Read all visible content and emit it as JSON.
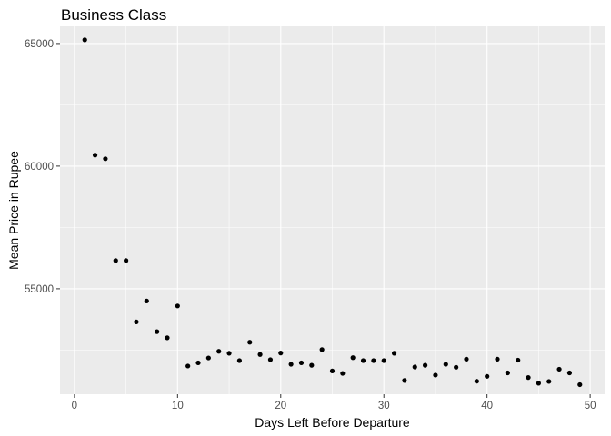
{
  "chart_data": {
    "type": "scatter",
    "title": "Business Class",
    "xlabel": "Days Left Before Departure",
    "ylabel": "Mean Price in Rupee",
    "xlim": [
      -1.4,
      51.4
    ],
    "ylim": [
      50700,
      65700
    ],
    "x_ticks": [
      0,
      10,
      20,
      30,
      40,
      50
    ],
    "y_ticks": [
      55000,
      60000,
      65000
    ],
    "grid": true,
    "legend": "none",
    "colors": {
      "panel": "#ebebeb",
      "grid_major": "#ffffff",
      "point": "#000000",
      "tick_text": "#4d4d4d",
      "tick_mark": "#333333"
    },
    "x": [
      1,
      2,
      3,
      4,
      5,
      6,
      7,
      8,
      9,
      10,
      11,
      12,
      13,
      14,
      15,
      16,
      17,
      18,
      19,
      20,
      21,
      22,
      23,
      24,
      25,
      26,
      27,
      28,
      29,
      30,
      31,
      32,
      33,
      34,
      35,
      36,
      37,
      38,
      39,
      40,
      41,
      42,
      43,
      44,
      45,
      46,
      47,
      48,
      49
    ],
    "y": [
      65150,
      60450,
      60300,
      56150,
      56150,
      53650,
      54500,
      53250,
      53000,
      54300,
      51850,
      51980,
      52180,
      52450,
      52370,
      52070,
      52820,
      52320,
      52110,
      52380,
      51920,
      51980,
      51880,
      52520,
      51650,
      51550,
      52190,
      52070,
      52070,
      52070,
      52370,
      51260,
      51810,
      51880,
      51480,
      51920,
      51800,
      52130,
      51230,
      51430,
      52130,
      51570,
      52090,
      51380,
      51150,
      51220,
      51720,
      51570,
      51090
    ]
  }
}
